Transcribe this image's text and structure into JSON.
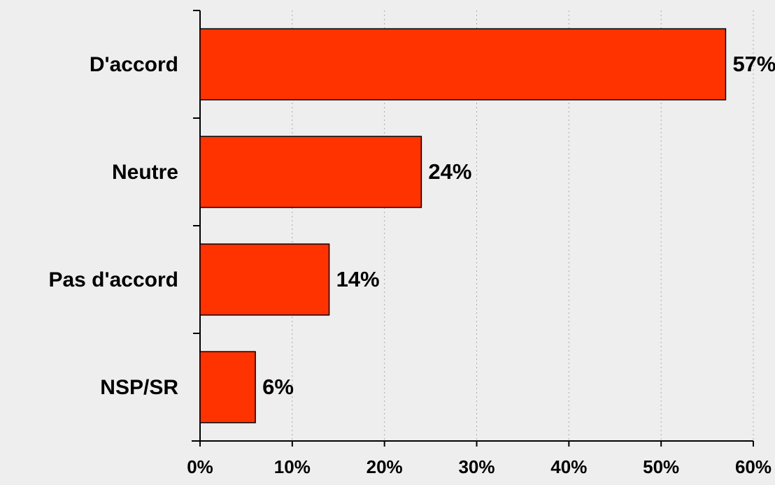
{
  "chart_data": {
    "type": "bar",
    "orientation": "horizontal",
    "categories": [
      "D'accord",
      "Neutre",
      "Pas d'accord",
      "NSP/SR"
    ],
    "values": [
      57,
      24,
      14,
      6
    ],
    "value_labels": [
      "57%",
      "24%",
      "14%",
      "6%"
    ],
    "color": "#ff3300",
    "xlim": [
      0,
      60
    ],
    "xticks": [
      {
        "value": 0,
        "label": "0%"
      },
      {
        "value": 10,
        "label": "10%"
      },
      {
        "value": 20,
        "label": "20%"
      },
      {
        "value": 30,
        "label": "30%"
      },
      {
        "value": 40,
        "label": "40%"
      },
      {
        "value": 50,
        "label": "50%"
      },
      {
        "value": 60,
        "label": "60%"
      }
    ],
    "grid": true
  }
}
